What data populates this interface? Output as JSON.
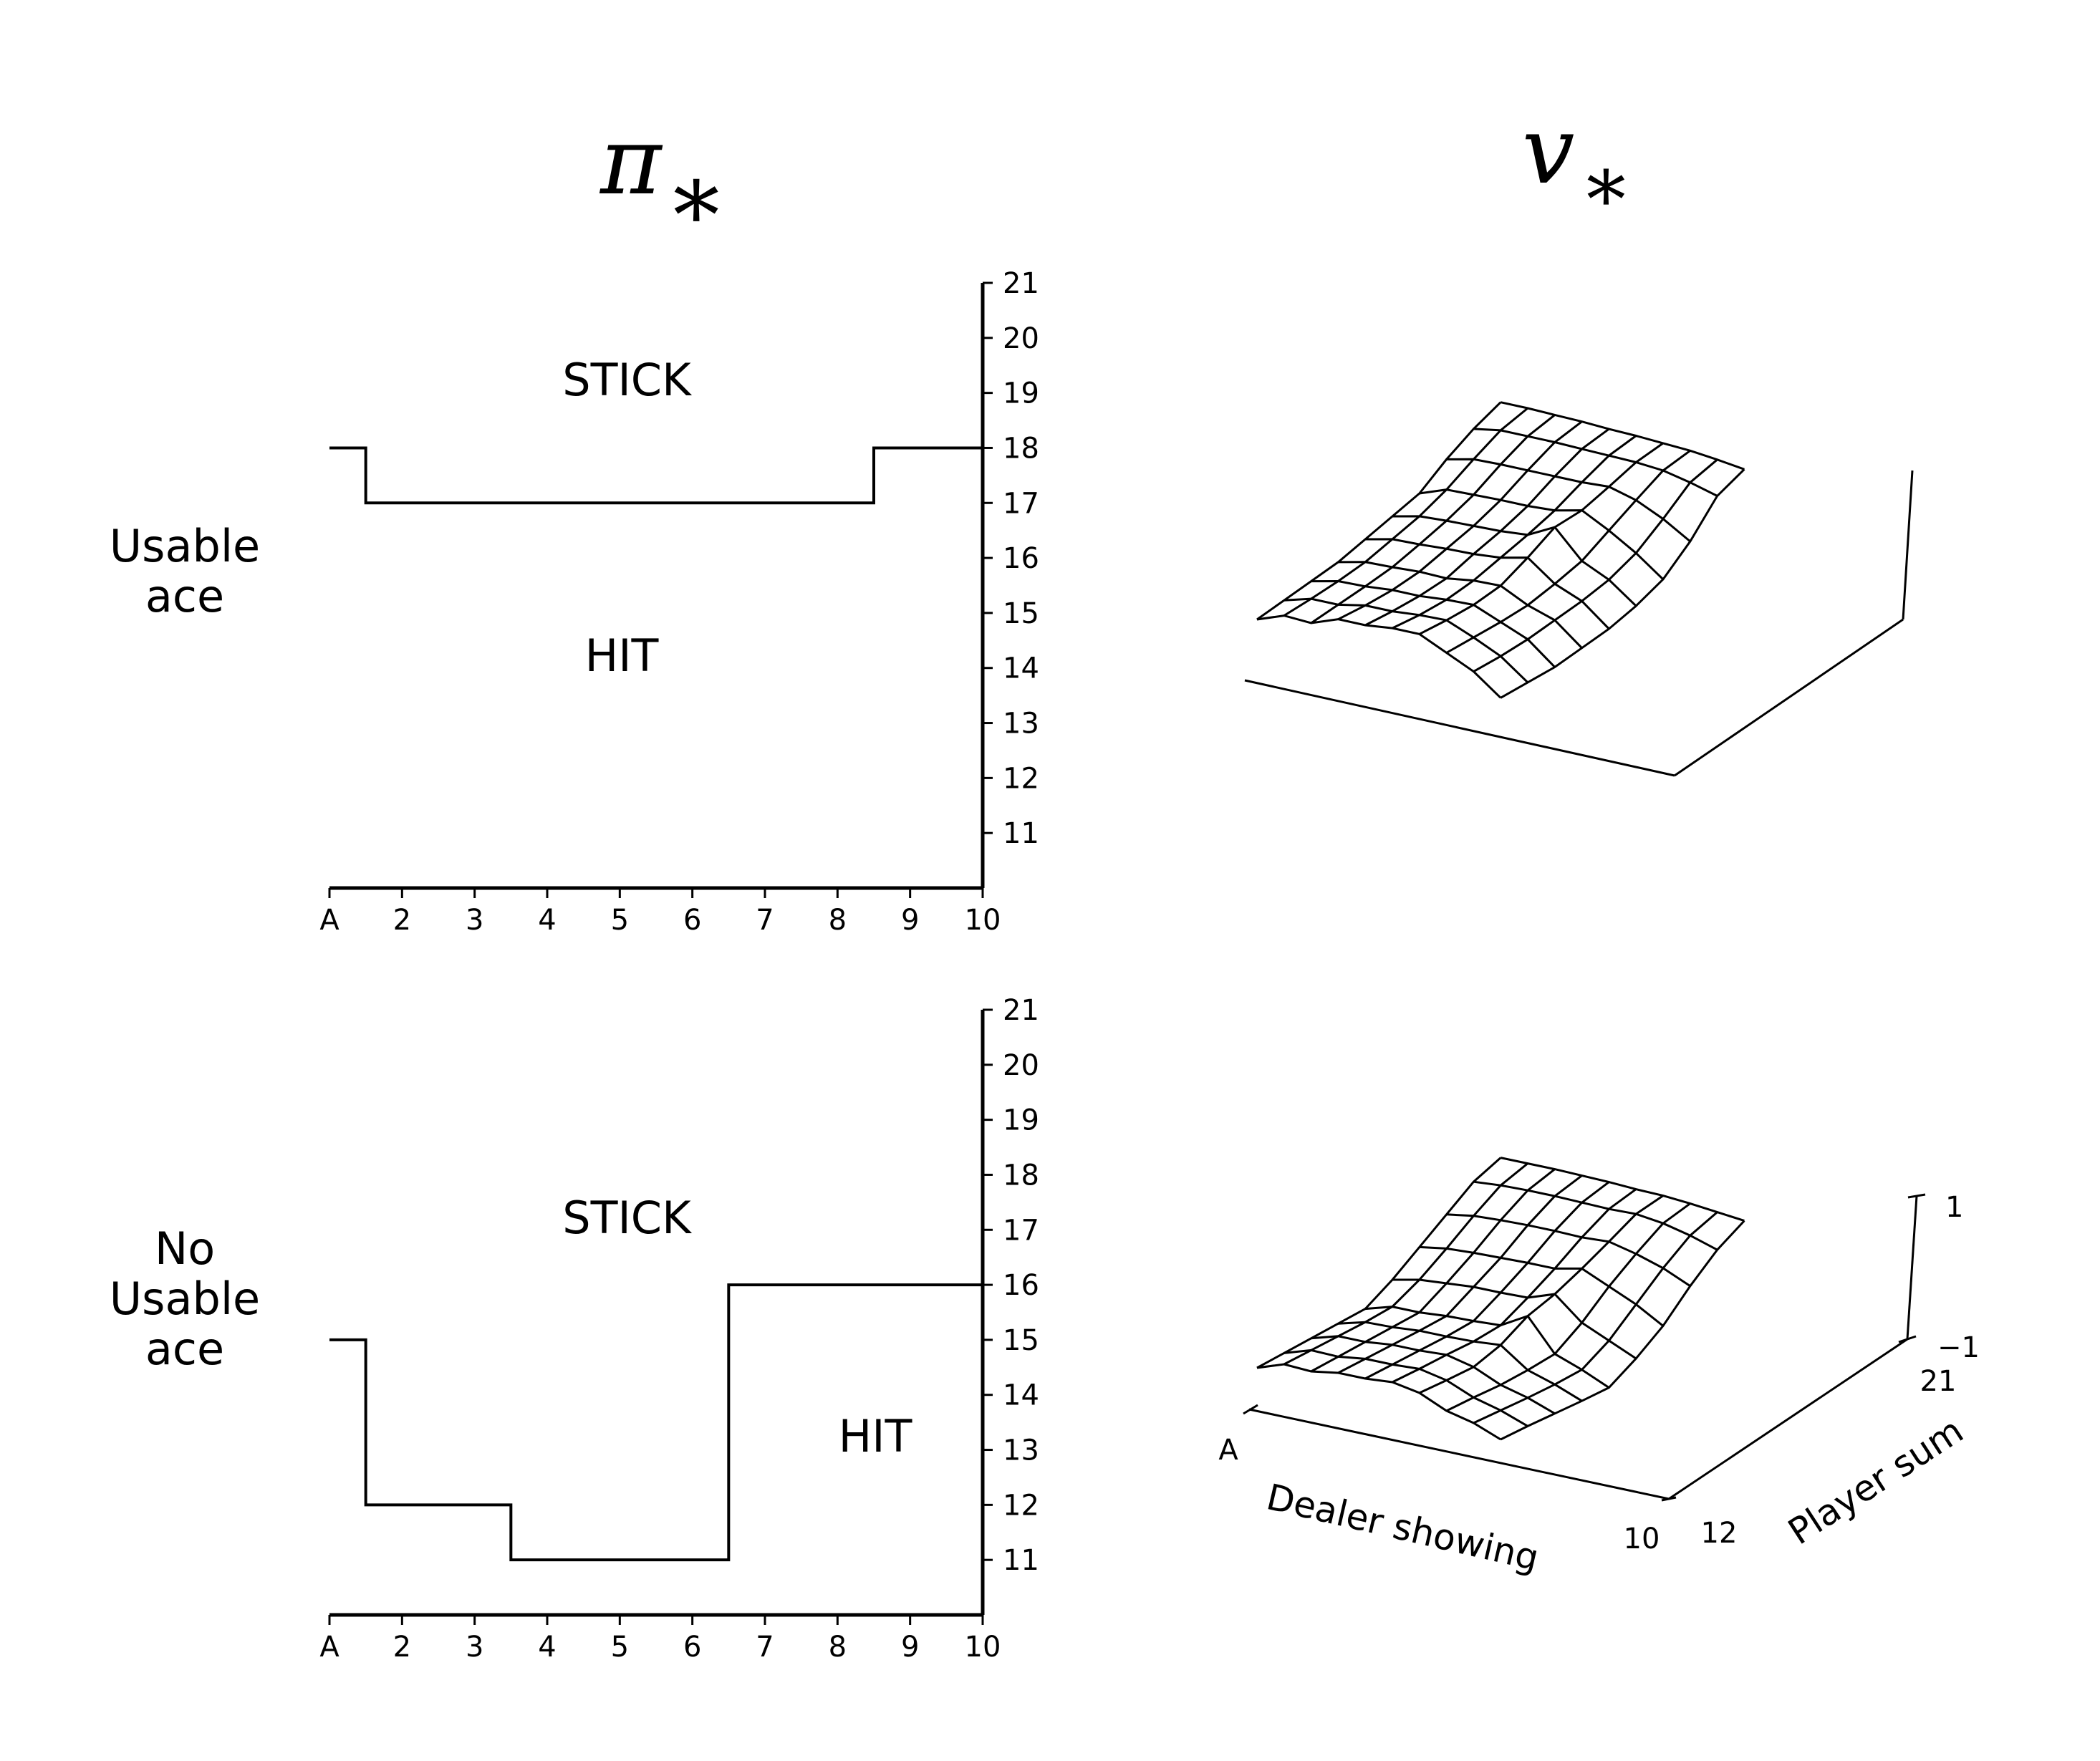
{
  "titles": {
    "left": "π",
    "left_sub": "∗",
    "right": "v",
    "right_sub": "∗"
  },
  "row_labels": [
    [
      "Usable",
      "ace"
    ],
    [
      "No",
      "Usable",
      "ace"
    ]
  ],
  "chart_data": [
    {
      "type": "line",
      "row_label": "Usable ace",
      "x": [
        "A",
        "2",
        "3",
        "4",
        "5",
        "6",
        "7",
        "8",
        "9",
        "10"
      ],
      "y_ticks": [
        "11",
        "12",
        "13",
        "14",
        "15",
        "16",
        "17",
        "18",
        "19",
        "20",
        "21"
      ],
      "ylim": [
        10,
        21
      ],
      "policy_boundary": [
        18,
        17,
        17,
        17,
        17,
        17,
        17,
        17,
        18,
        18
      ],
      "regions": [
        "STICK",
        "HIT"
      ]
    },
    {
      "type": "line",
      "row_label": "No Usable ace",
      "x": [
        "A",
        "2",
        "3",
        "4",
        "5",
        "6",
        "7",
        "8",
        "9",
        "10"
      ],
      "y_ticks": [
        "11",
        "12",
        "13",
        "14",
        "15",
        "16",
        "17",
        "18",
        "19",
        "20",
        "21"
      ],
      "ylim": [
        10,
        21
      ],
      "policy_boundary": [
        15,
        12,
        12,
        11,
        11,
        11,
        16,
        16,
        16,
        16
      ],
      "regions": [
        "STICK",
        "HIT"
      ]
    },
    {
      "type": "surface",
      "row_label": "Usable ace",
      "x_axis": "Dealer showing",
      "y_axis": "Player sum",
      "x_range": [
        "A",
        "10"
      ],
      "y_range": [
        "12",
        "21"
      ],
      "z_range": [
        -1,
        1
      ],
      "values": [
        [
          -0.6,
          -0.45,
          -0.45,
          -0.3,
          -0.28,
          -0.22,
          -0.2,
          -0.35,
          -0.5,
          -0.75
        ],
        [
          -0.5,
          -0.38,
          -0.36,
          -0.27,
          -0.25,
          -0.2,
          -0.17,
          -0.3,
          -0.45,
          -0.7
        ],
        [
          -0.4,
          -0.3,
          -0.27,
          -0.22,
          -0.2,
          -0.15,
          -0.12,
          -0.25,
          -0.38,
          -0.65
        ],
        [
          -0.3,
          -0.2,
          -0.17,
          -0.13,
          -0.12,
          -0.05,
          -0.02,
          -0.18,
          -0.28,
          -0.55
        ],
        [
          -0.15,
          -0.05,
          -0.02,
          0.02,
          0.05,
          0.1,
          0.2,
          -0.05,
          -0.18,
          -0.45
        ],
        [
          0.0,
          0.1,
          0.14,
          0.17,
          0.2,
          0.25,
          0.45,
          0.1,
          -0.05,
          -0.3
        ],
        [
          0.15,
          0.3,
          0.33,
          0.36,
          0.38,
          0.42,
          0.52,
          0.35,
          0.15,
          -0.1
        ],
        [
          0.45,
          0.55,
          0.58,
          0.6,
          0.62,
          0.64,
          0.68,
          0.6,
          0.45,
          0.25
        ],
        [
          0.7,
          0.78,
          0.8,
          0.82,
          0.83,
          0.84,
          0.85,
          0.84,
          0.78,
          0.7
        ],
        [
          0.9,
          0.92,
          0.93,
          0.94,
          0.94,
          0.95,
          0.95,
          0.95,
          0.93,
          0.9
        ]
      ]
    },
    {
      "type": "surface",
      "row_label": "No Usable ace",
      "x_axis": "Dealer showing",
      "y_axis": "Player sum",
      "x_range": [
        "A",
        "10"
      ],
      "y_range": [
        "12",
        "21"
      ],
      "z_range": [
        -1,
        1
      ],
      "z_ticks": [
        "1",
        "−1"
      ],
      "x_ticks": [
        "A",
        "10"
      ],
      "y_ticks": [
        "12",
        "21"
      ],
      "values": [
        [
          -0.65,
          -0.5,
          -0.5,
          -0.42,
          -0.4,
          -0.35,
          -0.4,
          -0.55,
          -0.62,
          -0.75
        ],
        [
          -0.6,
          -0.46,
          -0.45,
          -0.38,
          -0.36,
          -0.32,
          -0.38,
          -0.52,
          -0.6,
          -0.72
        ],
        [
          -0.55,
          -0.42,
          -0.4,
          -0.34,
          -0.32,
          -0.28,
          -0.35,
          -0.5,
          -0.58,
          -0.7
        ],
        [
          -0.5,
          -0.38,
          -0.35,
          -0.3,
          -0.28,
          -0.25,
          -0.2,
          -0.45,
          -0.55,
          -0.68
        ],
        [
          -0.45,
          -0.32,
          -0.3,
          -0.25,
          -0.22,
          -0.18,
          0.05,
          -0.38,
          -0.5,
          -0.65
        ],
        [
          -0.2,
          -0.1,
          -0.05,
          0.0,
          0.02,
          0.05,
          0.2,
          -0.1,
          -0.25,
          -0.4
        ],
        [
          0.1,
          0.18,
          0.22,
          0.25,
          0.28,
          0.3,
          0.4,
          0.25,
          0.1,
          -0.1
        ],
        [
          0.4,
          0.48,
          0.52,
          0.55,
          0.57,
          0.58,
          0.62,
          0.55,
          0.45,
          0.3
        ],
        [
          0.7,
          0.75,
          0.78,
          0.8,
          0.81,
          0.82,
          0.85,
          0.82,
          0.75,
          0.65
        ],
        [
          0.88,
          0.9,
          0.92,
          0.93,
          0.94,
          0.94,
          0.95,
          0.94,
          0.92,
          0.9
        ]
      ]
    }
  ]
}
